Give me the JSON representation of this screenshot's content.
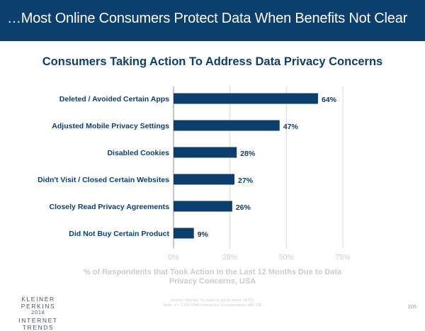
{
  "header": {
    "title": "…Most Online Consumers Protect Data When Benefits Not Clear"
  },
  "colors": {
    "header_bg": "#0d3f6e",
    "bar": "#0d3f6e",
    "axis_text": "#c8ccd2",
    "grid": "#d9d9d9"
  },
  "chart_data": {
    "type": "bar",
    "orientation": "horizontal",
    "title": "Consumers Taking Action To Address Data Privacy Concerns",
    "categories": [
      "Deleted / Avoided Certain Apps",
      "Adjusted Mobile Privacy Settings",
      "Disabled Cookies",
      "Didn't Visit / Closed Certain Websites",
      "Closely Read Privacy Agreements",
      "Did Not Buy Certain Product"
    ],
    "values": [
      64,
      47,
      28,
      27,
      26,
      9
    ],
    "value_labels": [
      "64%",
      "47%",
      "28%",
      "27%",
      "26%",
      "9%"
    ],
    "xlim": [
      0,
      75
    ],
    "xticks": [
      0,
      25,
      50,
      75
    ],
    "xtick_labels": [
      "0%",
      "25%",
      "50%",
      "75%"
    ],
    "xlabel_lines": [
      "% of Respondents that Took Action in the Last 12 Months Due to Data",
      "Privacy Concerns, USA"
    ],
    "grid": true
  },
  "footer": {
    "brand_line1": "KLEINER PERKINS",
    "brand_line2": "2018",
    "brand_line3": "INTERNET TRENDS",
    "source": "Source: Deloitte 'To share or not to share' (9/17).",
    "note": "Note: n = 1,000 USA consumers or respondents with 100",
    "page": "206"
  }
}
